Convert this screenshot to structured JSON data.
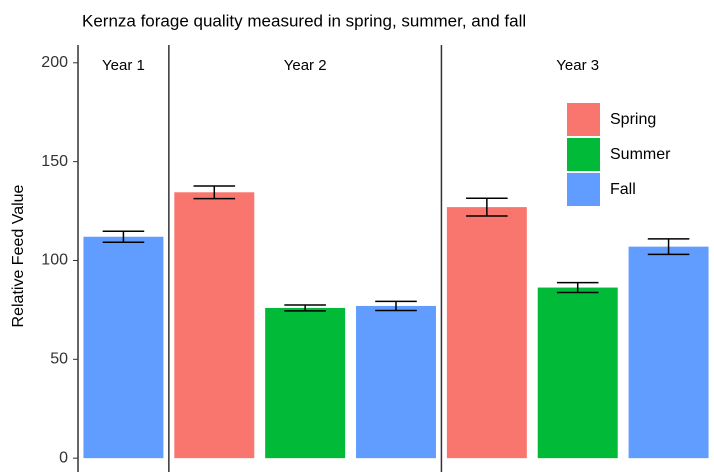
{
  "chart_data": {
    "type": "bar",
    "title": "Kernza forage quality measured in spring, summer, and fall",
    "ylabel": "Relative Feed Value",
    "facets": [
      "Year 1",
      "Year 2",
      "Year 3"
    ],
    "series": [
      {
        "name": "Spring",
        "color": "#F8766D",
        "values": [
          null,
          134.5,
          127
        ],
        "errors": [
          null,
          3.2,
          4.5
        ]
      },
      {
        "name": "Summer",
        "color": "#00BA38",
        "values": [
          null,
          76,
          86.3
        ],
        "errors": [
          null,
          1.5,
          2.5
        ]
      },
      {
        "name": "Fall",
        "color": "#619CFF",
        "values": [
          112,
          77,
          107
        ],
        "errors": [
          2.8,
          2.3,
          3.9
        ]
      }
    ],
    "ylim": [
      -7,
      209
    ],
    "yticks": [
      0,
      50,
      100,
      150,
      200
    ],
    "legend": "top-right"
  }
}
